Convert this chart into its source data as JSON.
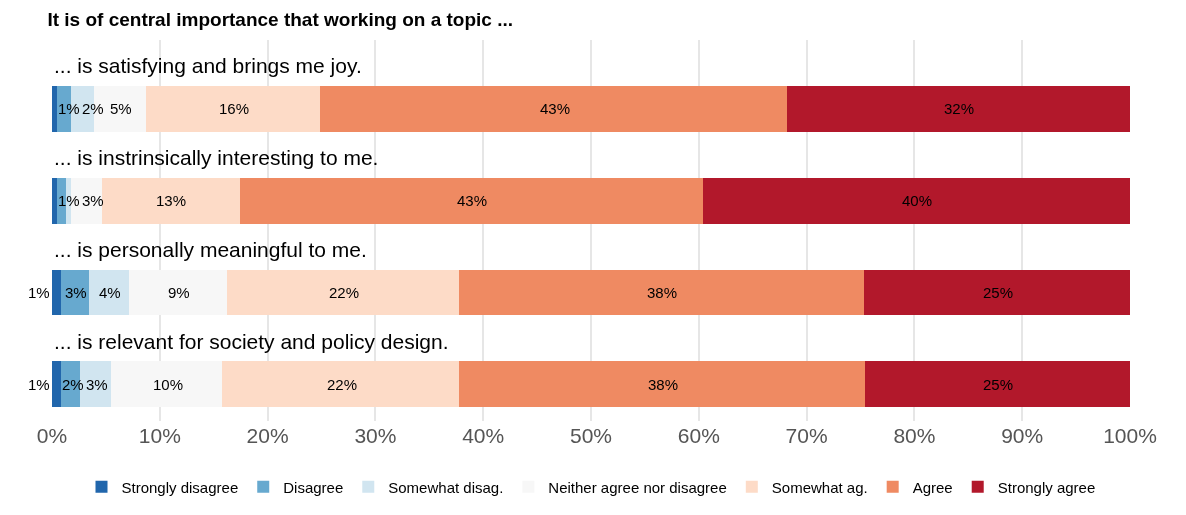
{
  "chart_data": {
    "type": "bar",
    "orientation": "horizontal",
    "stacked": true,
    "title": "It is of central importance that working on a topic ...",
    "categories": [
      "... is satisfying and brings me joy.",
      "... is instrinsically interesting to me.",
      "... is personally meaningful to me.",
      "... is relevant for society and policy design."
    ],
    "series": [
      {
        "name": "Strongly disagree",
        "color": "#2166ac",
        "values": [
          0.5,
          0.5,
          0.8,
          0.8
        ],
        "value_labels": [
          null,
          null,
          "1%",
          "1%"
        ]
      },
      {
        "name": "Disagree",
        "color": "#67a9cf",
        "values": [
          1.3,
          0.8,
          2.6,
          1.8
        ],
        "value_labels": [
          "1%",
          "1%",
          "3%",
          "2%"
        ]
      },
      {
        "name": "Somewhat disag.",
        "color": "#d1e5f0",
        "values": [
          2.1,
          0.5,
          3.7,
          2.9
        ],
        "value_labels": [
          "2%",
          null,
          "4%",
          "3%"
        ]
      },
      {
        "name": "Neither agree nor disagree",
        "color": "#f7f7f7",
        "values": [
          4.8,
          2.8,
          9.1,
          10.3
        ],
        "value_labels": [
          "5%",
          "3%",
          "9%",
          "10%"
        ]
      },
      {
        "name": "Somewhat ag.",
        "color": "#fddbc7",
        "values": [
          16.2,
          12.8,
          21.6,
          22.0
        ],
        "value_labels": [
          "16%",
          "13%",
          "22%",
          "22%"
        ]
      },
      {
        "name": "Agree",
        "color": "#ef8a62",
        "values": [
          43.3,
          43.0,
          37.5,
          37.6
        ],
        "value_labels": [
          "43%",
          "43%",
          "38%",
          "38%"
        ]
      },
      {
        "name": "Strongly agree",
        "color": "#b2182b",
        "values": [
          31.8,
          39.6,
          24.7,
          24.6
        ],
        "value_labels": [
          "32%",
          "40%",
          "25%",
          "25%"
        ]
      }
    ],
    "xlim": [
      0,
      100
    ],
    "xticks": [
      {
        "value": 0,
        "label": "0%"
      },
      {
        "value": 10,
        "label": "10%"
      },
      {
        "value": 20,
        "label": "20%"
      },
      {
        "value": 30,
        "label": "30%"
      },
      {
        "value": 40,
        "label": "40%"
      },
      {
        "value": 50,
        "label": "50%"
      },
      {
        "value": 60,
        "label": "60%"
      },
      {
        "value": 70,
        "label": "70%"
      },
      {
        "value": 80,
        "label": "80%"
      },
      {
        "value": 90,
        "label": "90%"
      },
      {
        "value": 100,
        "label": "100%"
      }
    ],
    "grid": "x",
    "legend": "bottom",
    "tick_labels": "x"
  }
}
